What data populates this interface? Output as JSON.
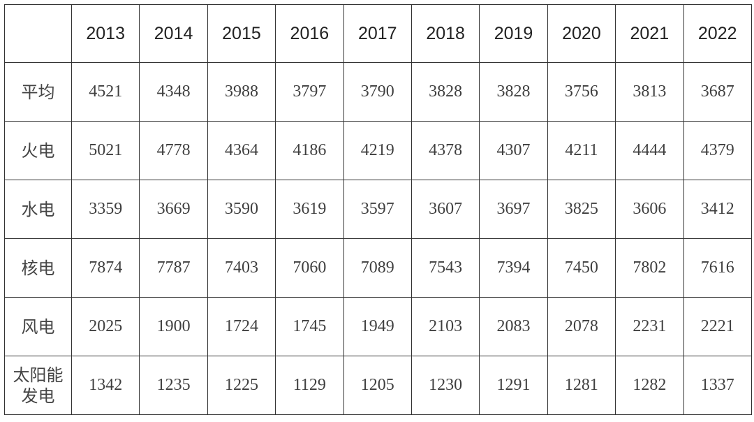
{
  "chart_data": {
    "type": "table",
    "columns": [
      "",
      "2013",
      "2014",
      "2015",
      "2016",
      "2017",
      "2018",
      "2019",
      "2020",
      "2021",
      "2022"
    ],
    "rows": [
      {
        "label": "平均",
        "values": [
          "4521",
          "4348",
          "3988",
          "3797",
          "3790",
          "3828",
          "3828",
          "3756",
          "3813",
          "3687"
        ]
      },
      {
        "label": "火电",
        "values": [
          "5021",
          "4778",
          "4364",
          "4186",
          "4219",
          "4378",
          "4307",
          "4211",
          "4444",
          "4379"
        ]
      },
      {
        "label": "水电",
        "values": [
          "3359",
          "3669",
          "3590",
          "3619",
          "3597",
          "3607",
          "3697",
          "3825",
          "3606",
          "3412"
        ]
      },
      {
        "label": "核电",
        "values": [
          "7874",
          "7787",
          "7403",
          "7060",
          "7089",
          "7543",
          "7394",
          "7450",
          "7802",
          "7616"
        ]
      },
      {
        "label": "风电",
        "values": [
          "2025",
          "1900",
          "1724",
          "1745",
          "1949",
          "2103",
          "2083",
          "2078",
          "2231",
          "2221"
        ]
      },
      {
        "label": "太阳能发电",
        "label_lines": [
          "太阳能",
          "发电"
        ],
        "values": [
          "1342",
          "1235",
          "1225",
          "1129",
          "1205",
          "1230",
          "1291",
          "1281",
          "1282",
          "1337"
        ]
      }
    ]
  }
}
